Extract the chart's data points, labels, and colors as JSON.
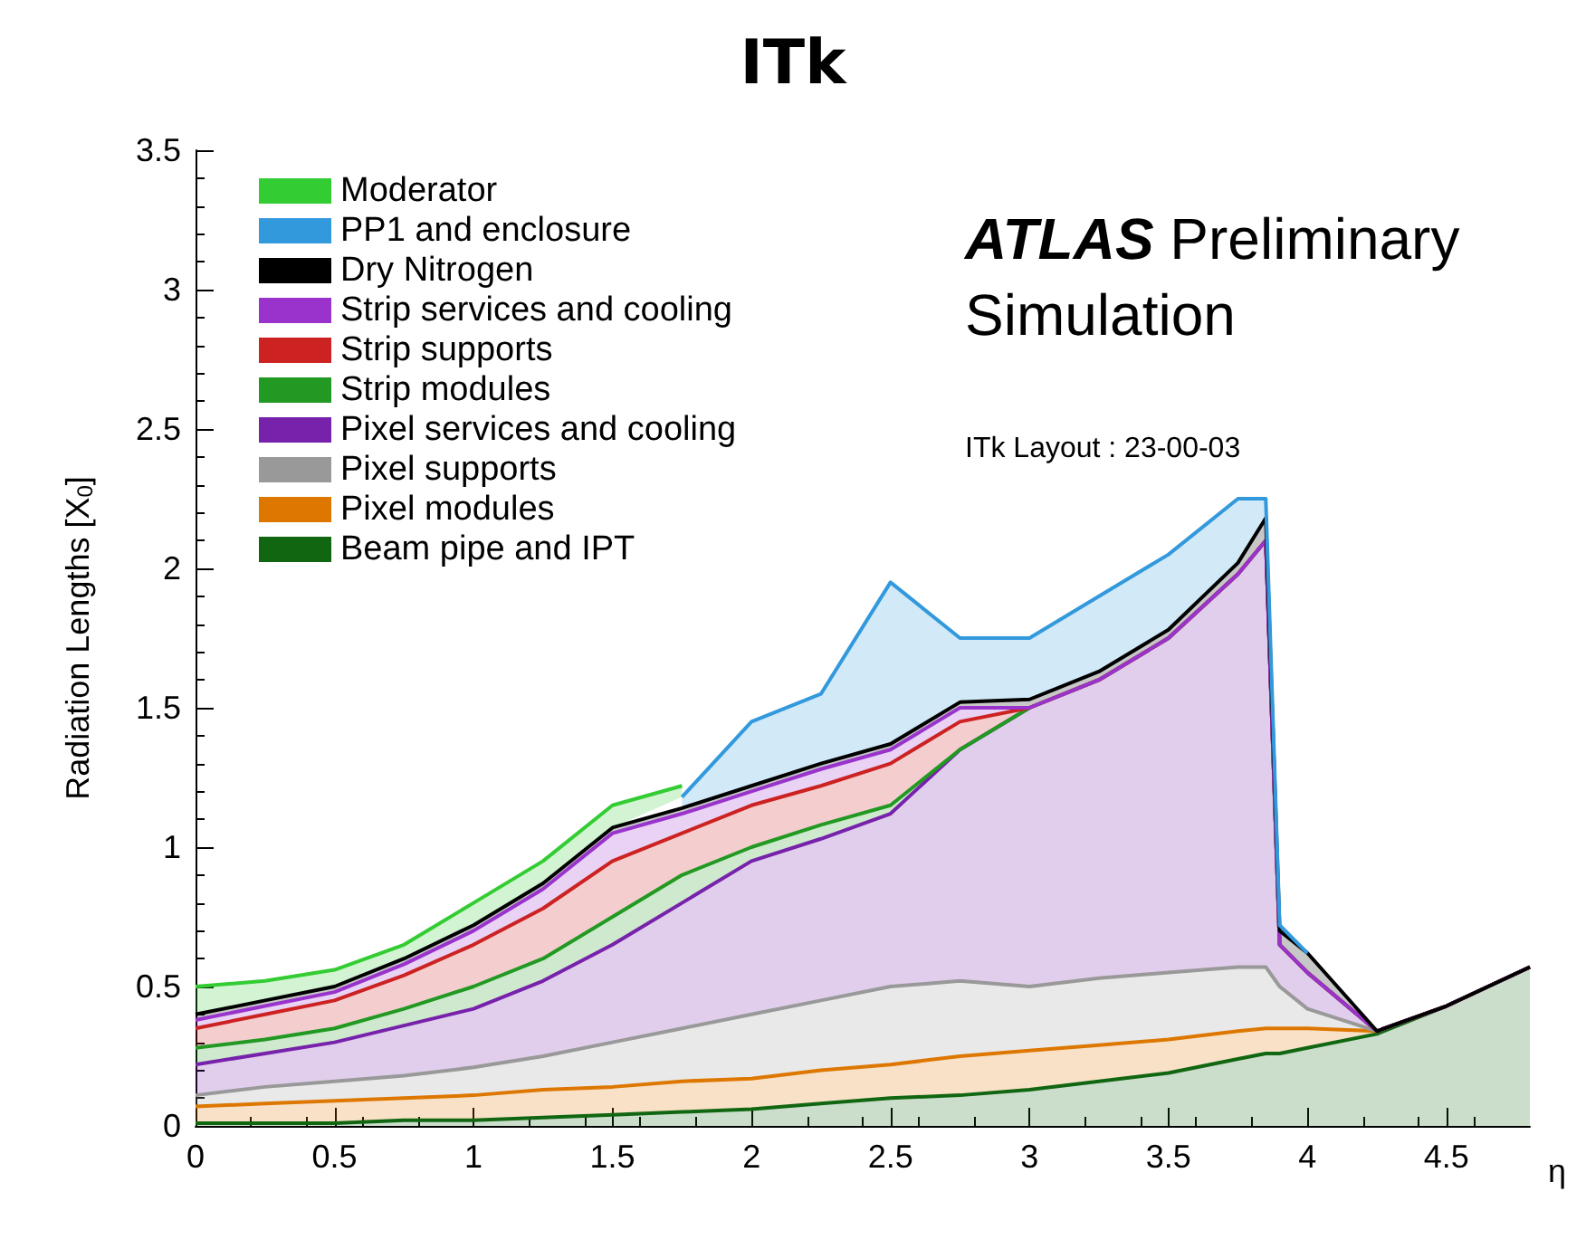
{
  "chart_data": {
    "type": "area",
    "title": "ITk",
    "xlabel": "η",
    "ylabel": "Radiation Lengths [X$_{0}$]",
    "annotations": [
      "ATLAS Preliminary",
      "Simulation",
      "ITk Layout : 23-00-03"
    ],
    "stacked": true,
    "legend": "top left",
    "grid": false,
    "x": [
      0,
      0.25,
      0.5,
      0.75,
      1,
      1.25,
      1.5,
      1.75,
      2,
      2.25,
      2.5,
      2.75,
      3,
      3.25,
      3.5,
      3.75,
      3.85,
      3.9,
      4,
      4.25,
      4.5,
      4.8
    ],
    "xlim": [
      0,
      4.8
    ],
    "xticks": [
      0,
      0.5,
      1,
      1.5,
      2,
      2.5,
      3,
      3.5,
      4,
      4.5
    ],
    "ylim": [
      0,
      3.5
    ],
    "yticks": [
      0,
      0.5,
      1,
      1.5,
      2,
      2.5,
      3,
      3.5
    ],
    "series": [
      {
        "name": "Beam pipe and IPT",
        "color": "#116611",
        "values": [
          0.01,
          0.01,
          0.01,
          0.02,
          0.02,
          0.03,
          0.04,
          0.05,
          0.06,
          0.08,
          0.1,
          0.11,
          0.13,
          0.16,
          0.19,
          0.24,
          0.26,
          0.26,
          0.28,
          0.33,
          0.43,
          0.57
        ]
      },
      {
        "name": "Pixel modules",
        "color": "#dd7700",
        "values": [
          0.06,
          0.07,
          0.08,
          0.08,
          0.09,
          0.1,
          0.1,
          0.11,
          0.11,
          0.12,
          0.12,
          0.14,
          0.14,
          0.13,
          0.12,
          0.1,
          0.09,
          0.09,
          0.07,
          0.01,
          0,
          0
        ]
      },
      {
        "name": "Pixel supports",
        "color": "#999999",
        "values": [
          0.04,
          0.06,
          0.07,
          0.08,
          0.1,
          0.12,
          0.16,
          0.19,
          0.23,
          0.25,
          0.28,
          0.27,
          0.23,
          0.24,
          0.24,
          0.23,
          0.22,
          0.15,
          0.07,
          0,
          0,
          0
        ]
      },
      {
        "name": "Pixel services and cooling",
        "color": "#7722aa",
        "values": [
          0.11,
          0.12,
          0.14,
          0.18,
          0.21,
          0.27,
          0.35,
          0.45,
          0.55,
          0.58,
          0.62,
          0.83,
          1.0,
          1.07,
          1.2,
          1.41,
          1.53,
          0.15,
          0.13,
          0,
          0,
          0
        ]
      },
      {
        "name": "Strip modules",
        "color": "#229922",
        "values": [
          0.06,
          0.05,
          0.05,
          0.06,
          0.08,
          0.08,
          0.1,
          0.1,
          0.05,
          0.05,
          0.03,
          0,
          0,
          0,
          0,
          0,
          0,
          0,
          0,
          0,
          0,
          0
        ]
      },
      {
        "name": "Strip supports",
        "color": "#cc2222",
        "values": [
          0.07,
          0.09,
          0.1,
          0.12,
          0.15,
          0.18,
          0.2,
          0.15,
          0.15,
          0.14,
          0.15,
          0.1,
          0,
          0,
          0,
          0,
          0,
          0,
          0,
          0,
          0,
          0
        ]
      },
      {
        "name": "Strip services and cooling",
        "color": "#9933cc",
        "values": [
          0.03,
          0.03,
          0.03,
          0.04,
          0.05,
          0.07,
          0.1,
          0.07,
          0.05,
          0.06,
          0.05,
          0.05,
          0,
          0,
          0,
          0,
          0,
          0,
          0,
          0,
          0,
          0
        ]
      },
      {
        "name": "Dry Nitrogen",
        "color": "#000000",
        "values": [
          0.02,
          0.02,
          0.02,
          0.02,
          0.02,
          0.02,
          0.02,
          0.02,
          0.02,
          0.02,
          0.02,
          0.02,
          0.03,
          0.03,
          0.03,
          0.04,
          0.08,
          0.05,
          0.07,
          0,
          0,
          0
        ]
      },
      {
        "name": "PP1 and enclosure",
        "color": "#3399dd",
        "values": [
          null,
          null,
          null,
          null,
          null,
          null,
          null,
          0.04,
          0.23,
          0.25,
          0.58,
          0.23,
          0.22,
          0.27,
          0.27,
          0.23,
          0.07,
          0.02,
          0,
          null,
          null,
          null
        ]
      },
      {
        "name": "Moderator",
        "color": "#33cc33",
        "values": [
          0.1,
          0.07,
          0.06,
          0.05,
          0.08,
          0.08,
          0.08,
          0.04,
          null,
          null,
          null,
          null,
          null,
          null,
          null,
          null,
          null,
          null,
          null,
          null,
          null,
          null
        ]
      }
    ]
  }
}
